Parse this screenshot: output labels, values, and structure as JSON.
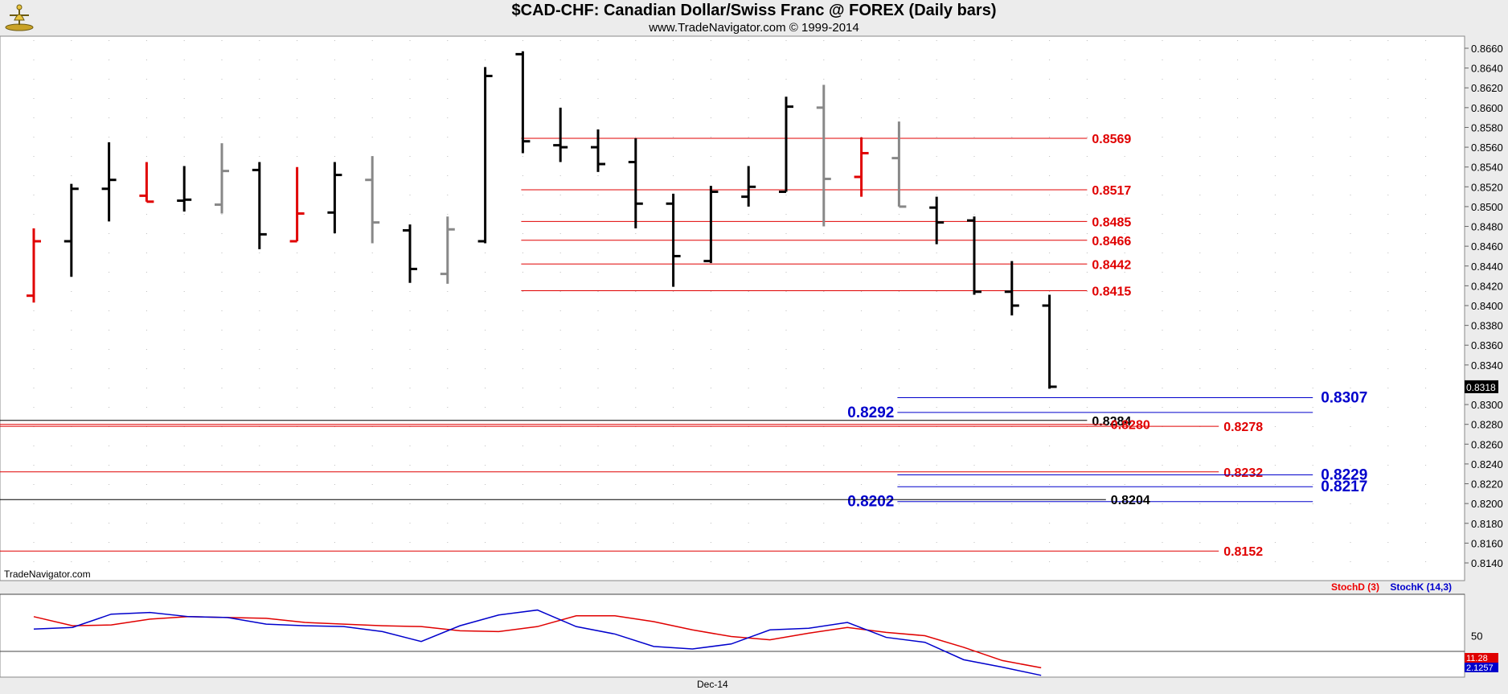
{
  "header": {
    "title": "$CAD-CHF:  Canadian Dollar/Swiss Franc @ FOREX  (Daily bars)",
    "subtitle": "www.TradeNavigator.com © 1999-2014"
  },
  "footer": {
    "watermark": "TradeNavigator.com",
    "x_label": "Dec-14"
  },
  "colors": {
    "up": "#000000",
    "down": "#e00000",
    "neutral": "#888888",
    "stochD": "#e00000",
    "stochK": "#0000cc",
    "levelRed": "#e00000",
    "levelBlue": "#0000cc"
  },
  "chart_data": [
    {
      "type": "ohlc",
      "title": "$CAD-CHF:  Canadian Dollar/Swiss Franc @ FOREX  (Daily bars)",
      "ylim": [
        0.813,
        0.867
      ],
      "y_ticks": [
        "0.8660",
        "0.8640",
        "0.8620",
        "0.8600",
        "0.8580",
        "0.8560",
        "0.8540",
        "0.8520",
        "0.8500",
        "0.8480",
        "0.8460",
        "0.8440",
        "0.8420",
        "0.8400",
        "0.8380",
        "0.8360",
        "0.8340",
        "0.8318",
        "0.8300",
        "0.8280",
        "0.8260",
        "0.8240",
        "0.8220",
        "0.8200",
        "0.8180",
        "0.8160",
        "0.8140"
      ],
      "last_price": "0.8318",
      "bars": [
        {
          "o": 0.841,
          "h": 0.8478,
          "l": 0.8403,
          "c": 0.8465,
          "color": "down"
        },
        {
          "o": 0.8465,
          "h": 0.8523,
          "l": 0.8429,
          "c": 0.8518,
          "color": "up"
        },
        {
          "o": 0.8518,
          "h": 0.8565,
          "l": 0.8485,
          "c": 0.8527,
          "color": "up"
        },
        {
          "o": 0.8511,
          "h": 0.8545,
          "l": 0.8505,
          "c": 0.8505,
          "color": "down"
        },
        {
          "o": 0.8506,
          "h": 0.8541,
          "l": 0.8495,
          "c": 0.8507,
          "color": "up"
        },
        {
          "o": 0.8502,
          "h": 0.8564,
          "l": 0.8493,
          "c": 0.8536,
          "color": "neutral"
        },
        {
          "o": 0.8537,
          "h": 0.8545,
          "l": 0.8457,
          "c": 0.8472,
          "color": "up"
        },
        {
          "o": 0.8465,
          "h": 0.854,
          "l": 0.8465,
          "c": 0.8493,
          "color": "down"
        },
        {
          "o": 0.8494,
          "h": 0.8545,
          "l": 0.8473,
          "c": 0.8532,
          "color": "up"
        },
        {
          "o": 0.8527,
          "h": 0.8551,
          "l": 0.8463,
          "c": 0.8484,
          "color": "neutral"
        },
        {
          "o": 0.8476,
          "h": 0.8482,
          "l": 0.8423,
          "c": 0.8437,
          "color": "up"
        },
        {
          "o": 0.8432,
          "h": 0.849,
          "l": 0.8422,
          "c": 0.8477,
          "color": "neutral"
        },
        {
          "o": 0.8465,
          "h": 0.8641,
          "l": 0.8463,
          "c": 0.8632,
          "color": "up"
        },
        {
          "o": 0.8654,
          "h": 0.8657,
          "l": 0.8554,
          "c": 0.8566,
          "color": "up"
        },
        {
          "o": 0.8562,
          "h": 0.86,
          "l": 0.8545,
          "c": 0.856,
          "color": "up"
        },
        {
          "o": 0.856,
          "h": 0.8578,
          "l": 0.8535,
          "c": 0.8543,
          "color": "up"
        },
        {
          "o": 0.8545,
          "h": 0.8569,
          "l": 0.8478,
          "c": 0.8503,
          "color": "up"
        },
        {
          "o": 0.8503,
          "h": 0.8513,
          "l": 0.8419,
          "c": 0.845,
          "color": "up"
        },
        {
          "o": 0.8445,
          "h": 0.8521,
          "l": 0.8443,
          "c": 0.8515,
          "color": "up"
        },
        {
          "o": 0.851,
          "h": 0.8541,
          "l": 0.85,
          "c": 0.852,
          "color": "up"
        },
        {
          "o": 0.8515,
          "h": 0.8611,
          "l": 0.8515,
          "c": 0.8601,
          "color": "up"
        },
        {
          "o": 0.86,
          "h": 0.8623,
          "l": 0.848,
          "c": 0.8528,
          "color": "neutral"
        },
        {
          "o": 0.853,
          "h": 0.857,
          "l": 0.851,
          "c": 0.8554,
          "color": "down"
        },
        {
          "o": 0.8549,
          "h": 0.8586,
          "l": 0.85,
          "c": 0.85,
          "color": "neutral"
        },
        {
          "o": 0.8499,
          "h": 0.851,
          "l": 0.8462,
          "c": 0.8484,
          "color": "up"
        },
        {
          "o": 0.8486,
          "h": 0.849,
          "l": 0.8411,
          "c": 0.8414,
          "color": "up"
        },
        {
          "o": 0.8414,
          "h": 0.8445,
          "l": 0.839,
          "c": 0.84,
          "color": "up"
        },
        {
          "o": 0.84,
          "h": 0.8411,
          "l": 0.8316,
          "c": 0.8318,
          "color": "up"
        }
      ],
      "levels": [
        {
          "label": "0.8569",
          "value": 0.8569,
          "color": "red",
          "start_bar": 13,
          "end_bar": 28
        },
        {
          "label": "0.8517",
          "value": 0.8517,
          "color": "red",
          "start_bar": 13,
          "end_bar": 28
        },
        {
          "label": "0.8485",
          "value": 0.8485,
          "color": "red",
          "start_bar": 13,
          "end_bar": 28
        },
        {
          "label": "0.8466",
          "value": 0.8466,
          "color": "red",
          "start_bar": 13,
          "end_bar": 28
        },
        {
          "label": "0.8442",
          "value": 0.8442,
          "color": "red",
          "start_bar": 13,
          "end_bar": 28
        },
        {
          "label": "0.8415",
          "value": 0.8415,
          "color": "red",
          "start_bar": 13,
          "end_bar": 28
        },
        {
          "label": "0.8307",
          "value": 0.8307,
          "color": "blue",
          "start_bar": 23,
          "end_bar": 34,
          "label_side": "right"
        },
        {
          "label": "0.8292",
          "value": 0.8292,
          "color": "blue",
          "start_bar": 23,
          "end_bar": 34,
          "label_side": "left"
        },
        {
          "label": "0.8284",
          "value": 0.8284,
          "color": "black",
          "start_bar": -1,
          "end_bar": 28
        },
        {
          "label": "0.8280",
          "value": 0.828,
          "color": "red",
          "start_bar": -1,
          "end_bar": 28.5
        },
        {
          "label": "0.8278",
          "value": 0.8278,
          "color": "red",
          "start_bar": -1,
          "end_bar": 31.5
        },
        {
          "label": "0.8232",
          "value": 0.8232,
          "color": "red",
          "start_bar": -1,
          "end_bar": 31.5
        },
        {
          "label": "0.8229",
          "value": 0.8229,
          "color": "blue",
          "start_bar": 23,
          "end_bar": 34,
          "label_side": "right"
        },
        {
          "label": "0.8217",
          "value": 0.8217,
          "color": "blue",
          "start_bar": 23,
          "end_bar": 34,
          "label_side": "right"
        },
        {
          "label": "0.8202",
          "value": 0.8202,
          "color": "blue",
          "start_bar": 23,
          "end_bar": 34,
          "label_side": "left"
        },
        {
          "label": "0.8204",
          "value": 0.8204,
          "color": "black",
          "start_bar": -1,
          "end_bar": 28.5
        },
        {
          "label": "0.8152",
          "value": 0.8152,
          "color": "red",
          "start_bar": -1,
          "end_bar": 31.5
        }
      ]
    },
    {
      "type": "line",
      "ylim": [
        0,
        100
      ],
      "y_tick": "50",
      "legend": {
        "d": "StochD (3)",
        "k": "StochK (14,3)"
      },
      "last_values": {
        "d": "11.28",
        "k": "2.1257"
      },
      "series": [
        {
          "name": "StochD (3)",
          "color": "red",
          "values": [
            73,
            62,
            63,
            70,
            73,
            72,
            71,
            66,
            64,
            62,
            61,
            56,
            55,
            61,
            74,
            74,
            67,
            57,
            49,
            45,
            53,
            60,
            54,
            50,
            36,
            20,
            11.28
          ]
        },
        {
          "name": "StochK (14,3)",
          "color": "blue",
          "values": [
            58,
            60,
            76,
            78,
            73,
            72,
            64,
            62,
            61,
            55,
            43,
            62,
            75,
            81,
            61,
            52,
            37,
            34,
            40,
            57,
            59,
            66,
            48,
            42,
            21,
            12,
            2.1257
          ]
        }
      ]
    }
  ]
}
